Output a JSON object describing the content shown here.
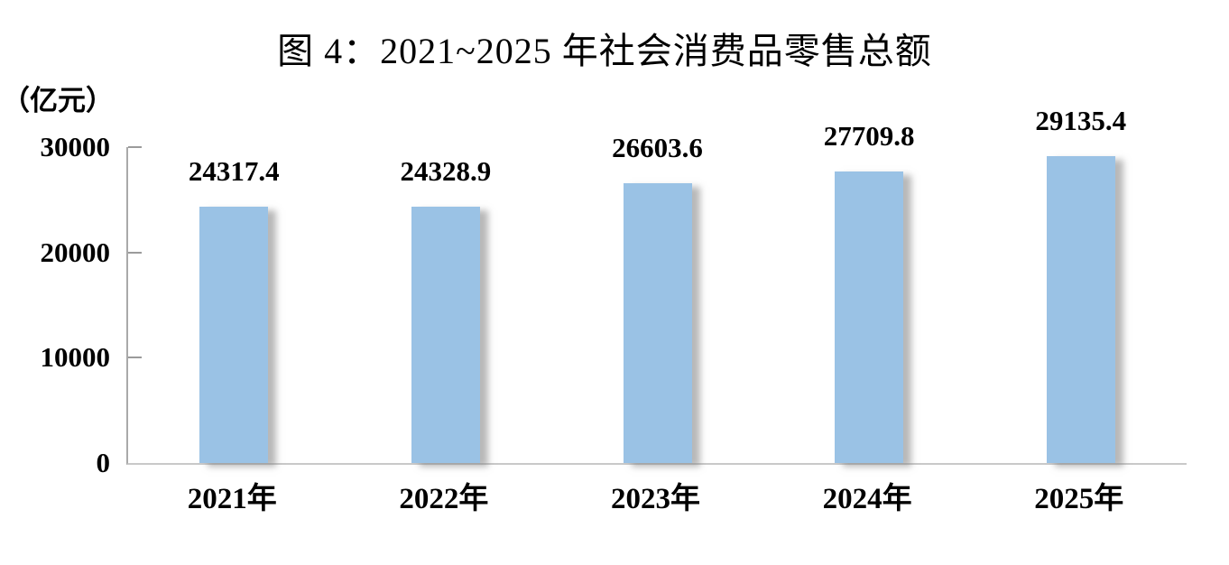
{
  "title": "图 4：2021~2025 年社会消费品零售总额",
  "unit_label": "（亿元）",
  "colors": {
    "bar_fill": "#9AC2E5",
    "axis_line": "#A9A9A9",
    "baseline": "#C9C9C9",
    "tick_mark": "#9B9B9B",
    "text": "#000000",
    "background": "#FFFFFF"
  },
  "chart_data": {
    "type": "bar",
    "title": "图 4：2021~2025 年社会消费品零售总额",
    "categories": [
      "2021年",
      "2022年",
      "2023年",
      "2024年",
      "2025年"
    ],
    "values": [
      24317.4,
      24328.9,
      26603.6,
      27709.8,
      29135.4
    ],
    "data_labels": [
      "24317.4",
      "24328.9",
      "26603.6",
      "27709.8",
      "29135.4"
    ],
    "xlabel": "",
    "ylabel": "（亿元）",
    "ylim": [
      0,
      30000
    ],
    "yticks": [
      0,
      10000,
      20000,
      30000
    ],
    "ytick_labels": [
      "0",
      "10000",
      "20000",
      "30000"
    ],
    "grid": false,
    "legend": false
  }
}
